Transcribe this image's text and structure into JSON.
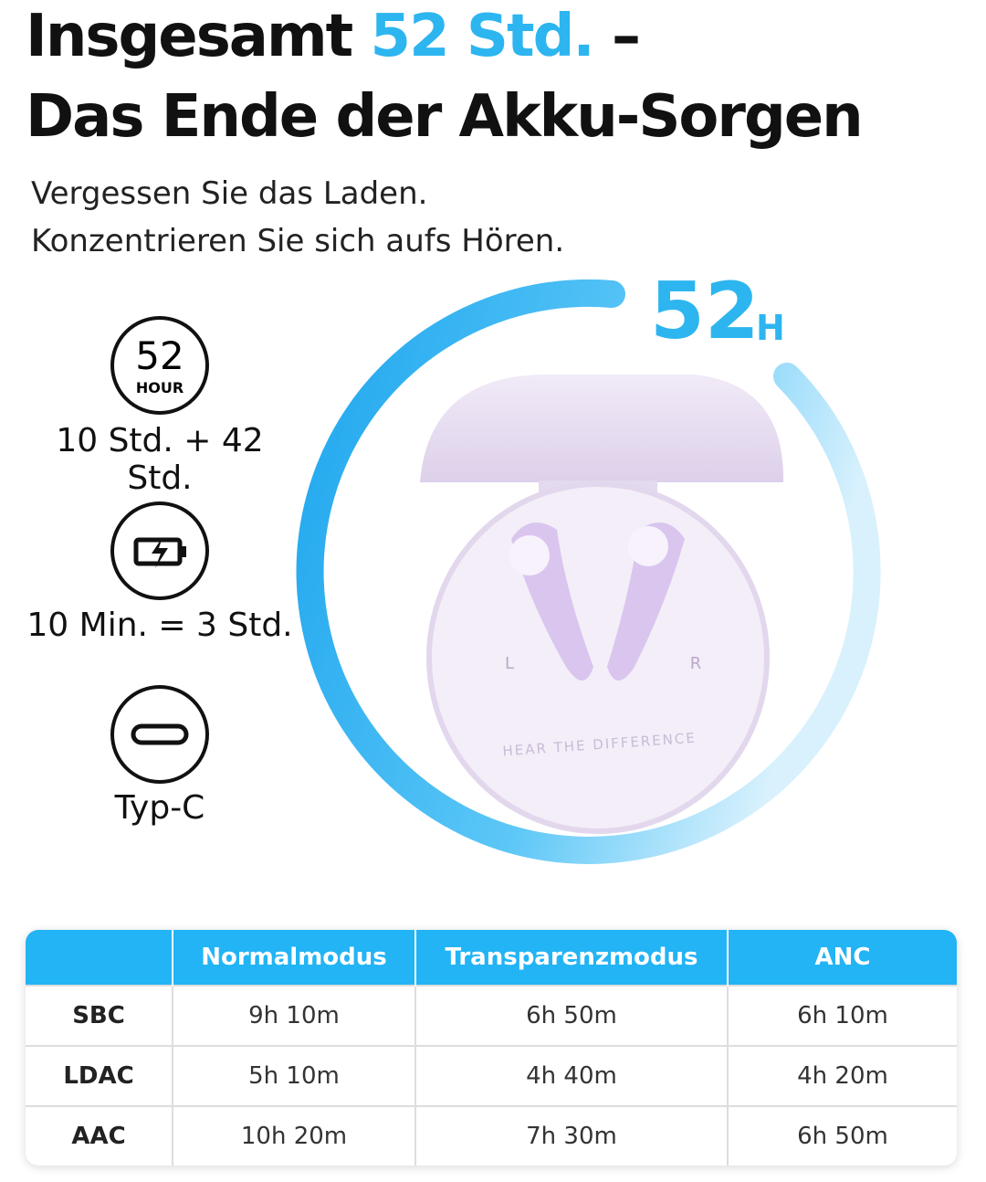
{
  "header": {
    "title_start": "Insgesamt",
    "title_highlight": "52 Std.",
    "title_dash": "–",
    "title_line2": "Das Ende der Akku-Sorgen",
    "subtitle_line1": "Vergessen Sie das Laden.",
    "subtitle_line2": "Konzentrieren Sie sich aufs Hören."
  },
  "ring": {
    "number": "52",
    "unit": "H"
  },
  "features": [
    {
      "icon_number": "52",
      "icon_unit": "HOUR",
      "caption": "10 Std. + 42 Std."
    },
    {
      "caption": "10 Min. = 3 Std."
    },
    {
      "caption": "Typ-C"
    }
  ],
  "case": {
    "left": "L",
    "right": "R",
    "slogan": "HEAR THE DIFFERENCE"
  },
  "table": {
    "columns": [
      "Normalmodus",
      "Transparenzmodus",
      "ANC"
    ],
    "rows": [
      {
        "label": "SBC",
        "cells": [
          "9h 10m",
          "6h 50m",
          "6h 10m"
        ]
      },
      {
        "label": "LDAC",
        "cells": [
          "5h 10m",
          "4h 40m",
          "4h 20m"
        ]
      },
      {
        "label": "AAC",
        "cells": [
          "10h 20m",
          "7h 30m",
          "6h 50m"
        ]
      }
    ]
  }
}
